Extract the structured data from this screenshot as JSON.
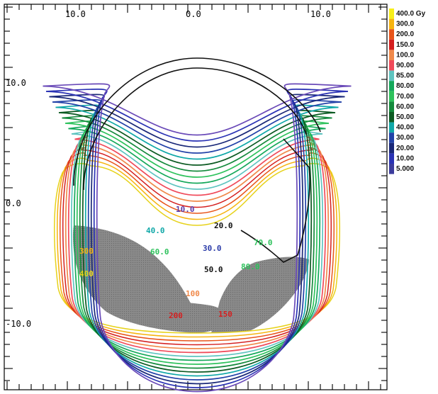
{
  "axes": {
    "top_ticks": [
      "10.0",
      "0.0",
      "10.0"
    ],
    "left_ticks": [
      "10.0",
      "0.0",
      "-10.0"
    ]
  },
  "legend": [
    {
      "label": "400.0 Gy",
      "color": "#f7ef1a"
    },
    {
      "label": "300.0",
      "color": "#f6b40f"
    },
    {
      "label": "200.0",
      "color": "#e8541a"
    },
    {
      "label": "150.0",
      "color": "#d41f1f"
    },
    {
      "label": "100.0",
      "color": "#f0894a"
    },
    {
      "label": "90.00",
      "color": "#f04a5a"
    },
    {
      "label": "85.00",
      "color": "#5fc4c0"
    },
    {
      "label": "80.00",
      "color": "#14a85a"
    },
    {
      "label": "70.00",
      "color": "#2ec25c"
    },
    {
      "label": "60.00",
      "color": "#148a3c"
    },
    {
      "label": "50.00",
      "color": "#0c5a22"
    },
    {
      "label": "40.00",
      "color": "#10a8a8"
    },
    {
      "label": "30.00",
      "color": "#2242a8"
    },
    {
      "label": "20.00",
      "color": "#1a2878"
    },
    {
      "label": "10.00",
      "color": "#2a32b4"
    },
    {
      "label": "5.000",
      "color": "#3c3c9c"
    }
  ],
  "contour_labels": [
    {
      "text": "10.0",
      "color": "#5a3aa8"
    },
    {
      "text": "20.0",
      "color": "#111111"
    },
    {
      "text": "30.0",
      "color": "#2a3aa8"
    },
    {
      "text": "40.0",
      "color": "#10a8a8"
    },
    {
      "text": "50.0",
      "color": "#111111"
    },
    {
      "text": "60.0",
      "color": "#2ec25c"
    },
    {
      "text": "70.0",
      "color": "#2ec25c"
    },
    {
      "text": "80.0",
      "color": "#2ec25c"
    },
    {
      "text": "100",
      "color": "#f0894a"
    },
    {
      "text": "150",
      "color": "#d41f1f"
    },
    {
      "text": "200",
      "color": "#d41f1f"
    },
    {
      "text": "300",
      "color": "#f6b40f"
    },
    {
      "text": "400",
      "color": "#e6d21a"
    }
  ]
}
